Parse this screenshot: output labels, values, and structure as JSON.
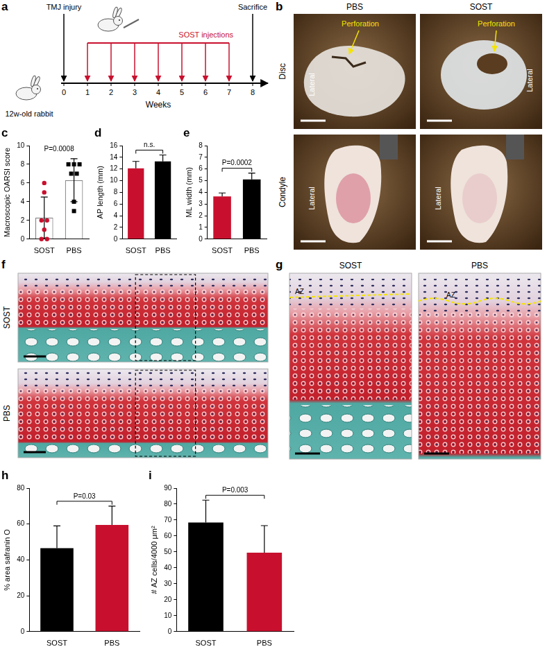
{
  "figure": {
    "panel_a": {
      "panel": "a",
      "time_label": "Weeks",
      "ticks": [
        0,
        1,
        2,
        3,
        4,
        5,
        6,
        7,
        8
      ],
      "animal": "12w-old rabbit",
      "injury": {
        "week": 0,
        "text": "TMJ injury"
      },
      "injections": {
        "weeks": [
          1,
          2,
          3,
          4,
          5,
          6,
          7
        ],
        "text": "SOST injections"
      },
      "sacrifice": {
        "week": 8,
        "text": "Sacrifice"
      }
    },
    "panel_b": {
      "panel": "b",
      "columns": [
        "PBS",
        "SOST"
      ],
      "rows": [
        "Disc",
        "Condyle"
      ],
      "side_label": "Lateral",
      "arrow_label": "Perforation"
    },
    "panel_f": {
      "panel": "f",
      "rows": [
        "SOST",
        "PBS"
      ]
    },
    "panel_g": {
      "panel": "g",
      "columns": [
        "SOST",
        "PBS"
      ],
      "zone_label": "AZ"
    }
  },
  "chart_data": [
    {
      "panel": "c",
      "type": "bar",
      "y_label": "Macroscopic OARSI score",
      "categories": [
        "SOST",
        "PBS"
      ],
      "values": [
        2.3,
        6.3
      ],
      "error": [
        2.2,
        2.3
      ],
      "color": "#ffffff",
      "points": [
        {
          "category": "SOST",
          "values": [
            6,
            5,
            2,
            2,
            1,
            0,
            0
          ],
          "color": "#c8102e",
          "marker": "circle"
        },
        {
          "category": "PBS",
          "values": [
            8,
            8,
            8,
            7,
            7,
            4,
            3
          ],
          "color": "#000000",
          "marker": "square"
        }
      ],
      "ylim": [
        0,
        10
      ],
      "yticks": [
        0,
        2,
        4,
        6,
        8,
        10
      ],
      "grid": false,
      "annotations": [
        {
          "text": "P=0.0008",
          "between": [
            "SOST",
            "PBS"
          ],
          "bracket": false
        }
      ]
    },
    {
      "panel": "d",
      "type": "bar",
      "y_label": "AP length (mm)",
      "categories": [
        "SOST",
        "PBS"
      ],
      "values": [
        12.1,
        13.3
      ],
      "error": [
        1.2,
        1.1
      ],
      "colors": [
        "#c8102e",
        "#000000"
      ],
      "ylim": [
        0,
        16
      ],
      "yticks": [
        0,
        2,
        4,
        6,
        8,
        10,
        12,
        14,
        16
      ],
      "grid": false,
      "annotations": [
        {
          "text": "n.s.",
          "between": [
            "SOST",
            "PBS"
          ],
          "bracket": true
        }
      ]
    },
    {
      "panel": "e",
      "type": "bar",
      "y_label": "ML width (mm)",
      "categories": [
        "SOST",
        "PBS"
      ],
      "values": [
        3.65,
        5.1
      ],
      "error": [
        0.3,
        0.55
      ],
      "colors": [
        "#c8102e",
        "#000000"
      ],
      "ylim": [
        0,
        8
      ],
      "yticks": [
        0,
        1,
        2,
        3,
        4,
        5,
        6,
        7,
        8
      ],
      "grid": false,
      "annotations": [
        {
          "text": "P=0.0002",
          "between": [
            "SOST",
            "PBS"
          ],
          "bracket": true
        }
      ]
    },
    {
      "panel": "h",
      "type": "bar",
      "y_label": "% area safranin O",
      "categories": [
        "SOST",
        "PBS"
      ],
      "values": [
        46.5,
        59.5
      ],
      "error": [
        12.5,
        10.5
      ],
      "colors": [
        "#000000",
        "#c8102e"
      ],
      "ylim": [
        0,
        80
      ],
      "yticks": [
        0,
        20,
        40,
        60,
        80
      ],
      "grid": false,
      "annotations": [
        {
          "text": "P=0.03",
          "between": [
            "SOST",
            "PBS"
          ],
          "bracket": true
        }
      ]
    },
    {
      "panel": "i",
      "type": "bar",
      "y_label": "# AZ cells/4000 μm²",
      "categories": [
        "SOST",
        "PBS"
      ],
      "values": [
        68.5,
        49.5
      ],
      "error": [
        14,
        17
      ],
      "colors": [
        "#000000",
        "#c8102e"
      ],
      "ylim": [
        0,
        90
      ],
      "yticks": [
        0,
        10,
        20,
        30,
        40,
        50,
        60,
        70,
        80,
        90
      ],
      "grid": false,
      "annotations": [
        {
          "text": "P=0.003",
          "between": [
            "SOST",
            "PBS"
          ],
          "bracket": true
        }
      ]
    }
  ]
}
